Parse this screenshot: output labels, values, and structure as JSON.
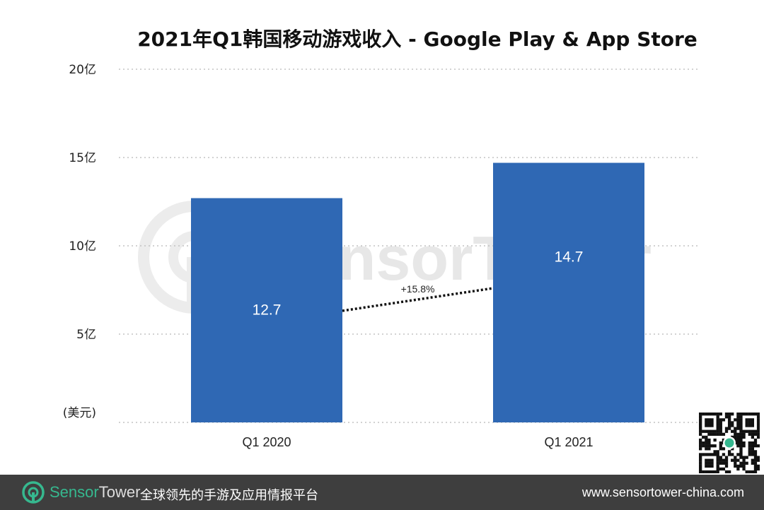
{
  "chart_data": {
    "type": "bar",
    "title": "2021年Q1韩国移动游戏收入 - Google Play & App Store",
    "categories": [
      "Q1 2020",
      "Q1 2021"
    ],
    "values": [
      12.7,
      14.7
    ],
    "value_labels": [
      "12.7",
      "14.7"
    ],
    "unit_label": "(美元)",
    "ylim": [
      0,
      20
    ],
    "yticks": [
      {
        "value": 5,
        "label": "5亿"
      },
      {
        "value": 10,
        "label": "10亿"
      },
      {
        "value": 15,
        "label": "15亿"
      },
      {
        "value": 20,
        "label": "20亿"
      }
    ],
    "growth_annotation": "+15.8%",
    "bar_color": "#2f68b4",
    "grid": true,
    "legend": "none"
  },
  "watermark": {
    "text": "SensorTower"
  },
  "footer": {
    "brand_part1": "Sensor",
    "brand_part2": "Tower",
    "tagline": "全球领先的手游及应用情报平台",
    "url": "www.sensortower-china.com"
  },
  "qr_code_icon": "qr-code-icon"
}
